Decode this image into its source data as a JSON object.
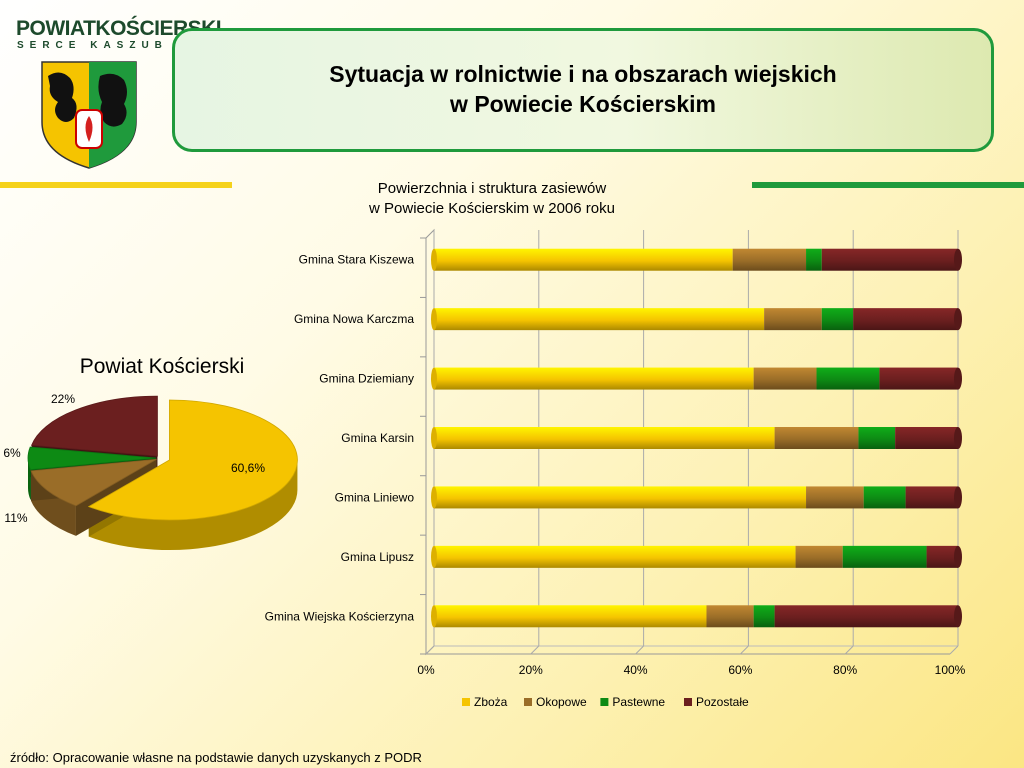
{
  "header": {
    "logo_text": "POWIATKOŚCIERSKI",
    "logo_subtext": "SERCE KASZUB",
    "title_line1": "Sytuacja w rolnictwie i na obszarach wiejskich",
    "title_line2": "w Powiecie Kościerskim"
  },
  "colors": {
    "zboza": "#f5c400",
    "okopowe": "#9a6d28",
    "pastewne": "#0d8a14",
    "pozostale": "#6b1f1f",
    "accent_green": "#1f9a3c",
    "accent_yellow": "#f5d21b"
  },
  "footer": {
    "source": "źródło: Opracowanie własne na podstawie danych uzyskanych z PODR"
  },
  "chart_data": [
    {
      "type": "bar",
      "orientation": "horizontal",
      "stacked": "percent",
      "title_line1": "Powierzchnia i struktura zasiewów",
      "title_line2": "w Powiecie Kościerskim w 2006 roku",
      "categories": [
        "Gmina Stara Kiszewa",
        "Gmina Nowa Karczma",
        "Gmina Dziemiany",
        "Gmina Karsin",
        "Gmina Liniewo",
        "Gmina Lipusz",
        "Gmina Wiejska Kościerzyna"
      ],
      "series": [
        {
          "name": "Zboża",
          "color": "#f5c400",
          "values": [
            57,
            63,
            61,
            65,
            71,
            69,
            52
          ]
        },
        {
          "name": "Okopowe",
          "color": "#9a6d28",
          "values": [
            14,
            11,
            12,
            16,
            11,
            9,
            9
          ]
        },
        {
          "name": "Pastewne",
          "color": "#0d8a14",
          "values": [
            3,
            6,
            12,
            7,
            8,
            16,
            4
          ]
        },
        {
          "name": "Pozostałe",
          "color": "#6b1f1f",
          "values": [
            26,
            20,
            15,
            12,
            10,
            6,
            35
          ]
        }
      ],
      "xlim": [
        0,
        100
      ],
      "x_ticks": [
        "0%",
        "20%",
        "40%",
        "60%",
        "80%",
        "100%"
      ],
      "legend_position": "bottom"
    },
    {
      "type": "pie",
      "title": "Powiat Kościerski",
      "slices": [
        {
          "label": "60,6%",
          "value": 60.6,
          "color": "#f5c400"
        },
        {
          "label": "11%",
          "value": 11,
          "color": "#9a6d28"
        },
        {
          "label": "6%",
          "value": 6,
          "color": "#0d8a14"
        },
        {
          "label": "22%",
          "value": 22,
          "color": "#6b1f1f"
        }
      ]
    }
  ]
}
